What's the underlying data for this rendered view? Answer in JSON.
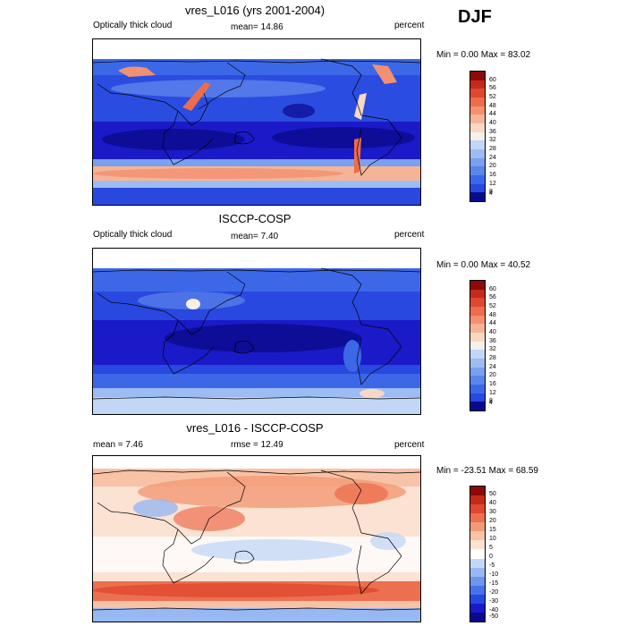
{
  "season": "DJF",
  "colors": {
    "sequential": [
      "#0a0a8c",
      "#1a1ac8",
      "#2848e0",
      "#3c68e8",
      "#5a86ea",
      "#7aa0ee",
      "#9cbcf2",
      "#c2d6f6",
      "#f6f0ea",
      "#f8d8c4",
      "#f6b496",
      "#f29070",
      "#ec6c4c",
      "#de4830",
      "#c42a1a",
      "#8c0a08"
    ],
    "diverging": [
      "#0a0a8c",
      "#1a1ac8",
      "#2848e0",
      "#4a72e8",
      "#6e96ee",
      "#98b8f2",
      "#c4d8f6",
      "#ffffff",
      "#fbe2d2",
      "#f7c2a6",
      "#f29a76",
      "#ec7050",
      "#e04830",
      "#c42a1a",
      "#8c0a08"
    ]
  },
  "panels": [
    {
      "title": "vres_L016 (yrs 2001-2004)",
      "left_label": "Optically thick cloud",
      "stat_text": "mean=  14.86",
      "right_label": "percent",
      "minmax": "Min =   0.00 Max =  83.02",
      "colorbar_ticks": [
        "60",
        "56",
        "52",
        "48",
        "44",
        "40",
        "36",
        "32",
        "28",
        "24",
        "20",
        "16",
        "12",
        "8",
        "4"
      ]
    },
    {
      "title": "ISCCP-COSP",
      "left_label": "Optically thick cloud",
      "stat_text": "mean=   7.40",
      "right_label": "percent",
      "minmax": "Min =   0.00 Max =  40.52",
      "colorbar_ticks": [
        "60",
        "56",
        "52",
        "48",
        "44",
        "40",
        "36",
        "32",
        "28",
        "24",
        "20",
        "16",
        "12",
        "8",
        "4"
      ]
    },
    {
      "title": "vres_L016 - ISCCP-COSP",
      "left_label": "mean =   7.46",
      "stat_text": "rmse =  12.49",
      "right_label": "percent",
      "minmax": "Min = -23.51 Max =  68.59",
      "colorbar_ticks": [
        "50",
        "40",
        "30",
        "20",
        "15",
        "10",
        "5",
        "0",
        "-5",
        "-10",
        "-15",
        "-20",
        "-30",
        "-40",
        "-50"
      ]
    }
  ]
}
